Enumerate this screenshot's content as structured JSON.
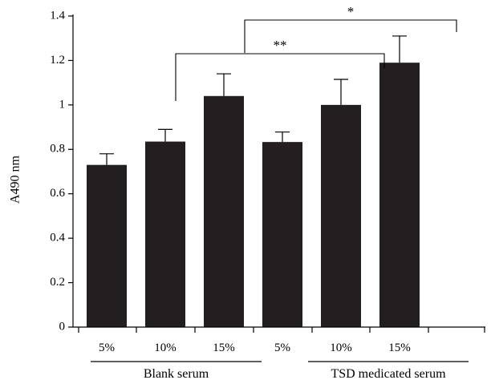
{
  "chart_data": {
    "type": "bar",
    "ylabel": "A490 nm",
    "xlabel": "",
    "ylim": [
      0,
      1.4
    ],
    "yticks": [
      "0",
      "0.2",
      "0.4",
      "0.6",
      "0.8",
      "1",
      "1.2",
      "1.4"
    ],
    "categories": [
      "5%",
      "10%",
      "15%",
      "5%",
      "10%",
      "15%"
    ],
    "values": [
      0.73,
      0.835,
      1.04,
      0.833,
      1.0,
      1.19
    ],
    "errors": [
      0.05,
      0.055,
      0.1,
      0.045,
      0.115,
      0.12
    ],
    "groups": [
      {
        "label": "Blank serum",
        "members": [
          0,
          1,
          2
        ]
      },
      {
        "label": "TSD medicated serum",
        "members": [
          3,
          4,
          5
        ]
      }
    ],
    "significance": [
      {
        "from": 1,
        "to": 4,
        "label": "**"
      },
      {
        "from": 2,
        "to": 5,
        "label": "*"
      }
    ],
    "bar_color": "#231f20",
    "grid": false
  }
}
